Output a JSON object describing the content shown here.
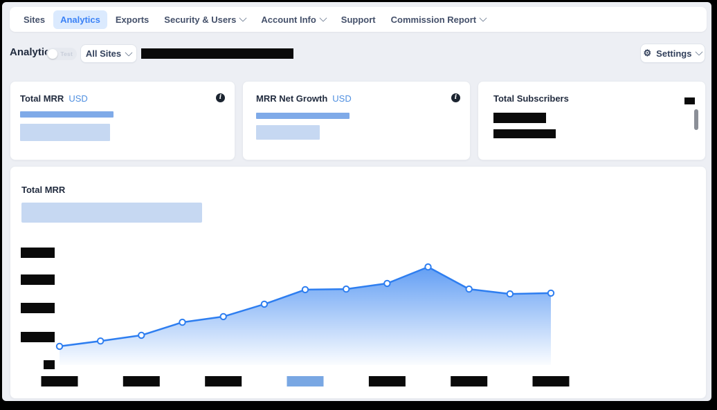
{
  "nav": {
    "items": [
      {
        "label": "Sites",
        "active": false,
        "has_dropdown": false
      },
      {
        "label": "Analytics",
        "active": true,
        "has_dropdown": false
      },
      {
        "label": "Exports",
        "active": false,
        "has_dropdown": false
      },
      {
        "label": "Security & Users",
        "active": false,
        "has_dropdown": true
      },
      {
        "label": "Account Info",
        "active": false,
        "has_dropdown": true
      },
      {
        "label": "Support",
        "active": false,
        "has_dropdown": false
      },
      {
        "label": "Commission Report",
        "active": false,
        "has_dropdown": true
      }
    ]
  },
  "toolbar": {
    "heading": "Analytics",
    "test_toggle": {
      "label": "Test",
      "state": "off"
    },
    "site_selector": {
      "value": "All Sites"
    },
    "selected_context_redacted": true,
    "settings_button": {
      "label": "Settings",
      "icon": "gear"
    }
  },
  "summary_cards": [
    {
      "title": "Total MRR",
      "currency": "USD",
      "has_info_icon": true,
      "primary_value_redacted": true,
      "secondary_value_redacted": true
    },
    {
      "title": "MRR Net Growth",
      "currency": "USD",
      "has_info_icon": true,
      "primary_value_redacted": true,
      "secondary_value_redacted": true
    },
    {
      "title": "Total Subscribers",
      "currency": "",
      "has_info_icon": false,
      "corner_value_redacted": true,
      "primary_value_redacted": true,
      "secondary_value_redacted": true,
      "has_scrollbar": true
    }
  ],
  "chart_data": {
    "type": "area",
    "title": "Total MRR",
    "subtitle_redacted": true,
    "point_count": 13,
    "values": [
      0.66,
      0.85,
      1.05,
      1.51,
      1.71,
      2.15,
      2.66,
      2.68,
      2.88,
      3.46,
      2.68,
      2.51,
      2.54
    ],
    "value_scale": "relative y-axis grid units (0 = baseline); numeric axis labels are redacted in source image",
    "ylim": [
      0,
      4.6
    ],
    "y_tick_count": 4,
    "y_labels_redacted": true,
    "x_labels": [
      "[redacted]",
      "[redacted]",
      "[redacted]",
      "[redacted]",
      "[redacted]",
      "[redacted]",
      "[redacted]"
    ],
    "x_labels_redacted": true,
    "highlighted_x_tick_index": 3,
    "x_ticks_every_other_point": true,
    "grid": "off",
    "legend": "none",
    "line_color": "#2e7ef0",
    "marker": {
      "fill": "#ffffff",
      "stroke": "#2e7ef0"
    },
    "area_fill": "vertical gradient #2e7ef0 to transparent",
    "highlight_color": "#79a7e3",
    "redaction_color": "#0a0a0a"
  },
  "colors": {
    "frame": "#000000",
    "page_bg": "#edeff4",
    "card_bg": "#ffffff",
    "accent_blue": "#3b82f6",
    "active_tab_bg": "#dbeafe",
    "nav_text": "#44506a",
    "title_text": "#222c3f",
    "currency_text": "#4f8fe0",
    "redact_medium_blue": "#7faae8",
    "redact_light_blue": "#c6d8f2",
    "redact_black": "#0a0a0a",
    "scrollbar_gray": "#8b8f97"
  }
}
